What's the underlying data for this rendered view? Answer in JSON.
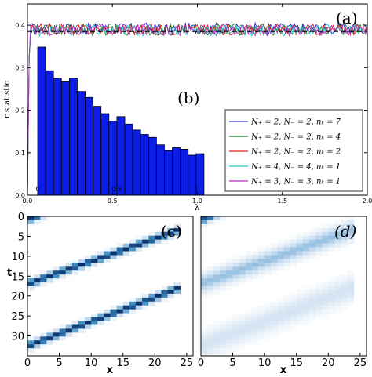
{
  "panels": {
    "a": "(a)",
    "b": "(b)",
    "c": "(c)",
    "d": "(d)"
  },
  "chart_data": [
    {
      "type": "line",
      "panel": "(a)",
      "xlabel": "λ",
      "ylabel": "r statistic",
      "xlim": [
        0.0,
        2.0
      ],
      "ylim": [
        0.0,
        0.45
      ],
      "x_ticks": [
        "0.0",
        "0.5",
        "1.0",
        "1.5",
        "2.0"
      ],
      "y_ticks": [
        "0.0",
        "0.1",
        "0.2",
        "0.3",
        "0.4"
      ],
      "reference_line": 0.386,
      "legend_position": "lower-right",
      "series": [
        {
          "name": "N₊ = 2, N₋ = 2, nₖ = 7",
          "color": "#2a2ad6",
          "mean": 0.392
        },
        {
          "name": "N₊ = 2, N₋ = 2, nₖ = 4",
          "color": "#1e7d1e",
          "mean": 0.39
        },
        {
          "name": "N₊ = 2, N₋ = 2, nₖ = 2",
          "color": "#e02020",
          "mean": 0.39
        },
        {
          "name": "N₊ = 4, N₋ = 4, nₖ = 1",
          "color": "#28c8c8",
          "mean": 0.388
        },
        {
          "name": "N₊ = 3, N₋ = 3, nₖ = 1",
          "color": "#b030c0",
          "mean": 0.389
        }
      ]
    },
    {
      "type": "bar",
      "panel": "(b)",
      "xlim": [
        0,
        1.1
      ],
      "x_ticks": [
        "0",
        "0.5",
        "1"
      ],
      "color": "#0c1ee6",
      "bar_starts": [
        0.0,
        0.05,
        0.1,
        0.15,
        0.2,
        0.25,
        0.3,
        0.35,
        0.4,
        0.45,
        0.5,
        0.55,
        0.6,
        0.65,
        0.7,
        0.75,
        0.8,
        0.85,
        0.9,
        0.95,
        1.0
      ],
      "bar_width": 0.05,
      "values": [
        1.0,
        0.84,
        0.79,
        0.77,
        0.79,
        0.7,
        0.66,
        0.6,
        0.55,
        0.5,
        0.53,
        0.48,
        0.44,
        0.41,
        0.39,
        0.34,
        0.3,
        0.32,
        0.31,
        0.27,
        0.28
      ]
    },
    {
      "type": "heatmap",
      "panel": "(c)",
      "xlabel": "x",
      "ylabel": "t",
      "xlim": [
        0,
        26
      ],
      "ylim": [
        0,
        35
      ],
      "x_ticks": [
        "0",
        "5",
        "10",
        "15",
        "20",
        "25"
      ],
      "y_ticks": [
        "0",
        "5",
        "10",
        "15",
        "20",
        "25",
        "30"
      ],
      "colormap": "Blues",
      "tracks": [
        {
          "x_start": 0,
          "t_start": 1,
          "x_end": 3,
          "t_end": -1,
          "intensity": 1.0,
          "width": 1.0
        },
        {
          "x_start": 0,
          "t_start": 17.5,
          "x_end": 23,
          "t_end": 4,
          "intensity": 1.0,
          "width": 1.0
        },
        {
          "x_start": 0,
          "t_start": 33.5,
          "x_end": 23,
          "t_end": 19,
          "intensity": 1.0,
          "width": 1.0
        }
      ]
    },
    {
      "type": "heatmap",
      "panel": "(d)",
      "xlabel": "x",
      "xlim": [
        0,
        26
      ],
      "ylim": [
        0,
        35
      ],
      "x_ticks": [
        "0",
        "5",
        "10",
        "15",
        "20",
        "25"
      ],
      "colormap": "Blues",
      "tracks": [
        {
          "x_start": 0,
          "t_start": 1,
          "x_end": 3,
          "t_end": -1,
          "intensity": 0.9,
          "width": 1.2
        },
        {
          "x_start": 0,
          "t_start": 17.5,
          "x_end": 23,
          "t_end": 4,
          "intensity": 0.45,
          "width": 2.4
        },
        {
          "x_start": 0,
          "t_start": 33.5,
          "x_end": 23,
          "t_end": 19,
          "intensity": 0.25,
          "width": 3.2
        }
      ]
    }
  ]
}
